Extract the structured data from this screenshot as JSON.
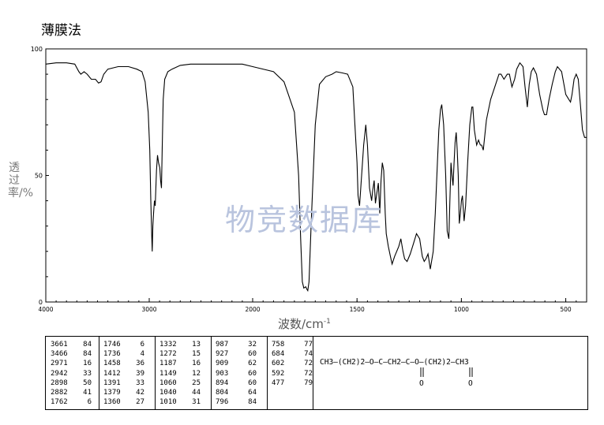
{
  "header": {
    "method": "薄膜法"
  },
  "watermark": "物竞数据库",
  "chart_data": {
    "type": "line",
    "xlabel": "波数/cm",
    "xlabel_sup": "-1",
    "ylabel": "透过率/%",
    "xlim": [
      4000,
      400
    ],
    "ylim": [
      0,
      100
    ],
    "x_ticks": [
      "4000",
      "3000",
      "2000",
      "1500",
      "1000",
      "500"
    ],
    "y_ticks": [
      "100",
      "50",
      "0"
    ],
    "series": [
      {
        "points": [
          [
            4000,
            94
          ],
          [
            3900,
            94.5
          ],
          [
            3800,
            94.5
          ],
          [
            3720,
            94
          ],
          [
            3680,
            91
          ],
          [
            3661,
            90
          ],
          [
            3630,
            91
          ],
          [
            3600,
            90
          ],
          [
            3560,
            88
          ],
          [
            3520,
            88
          ],
          [
            3490,
            86.5
          ],
          [
            3466,
            87
          ],
          [
            3440,
            90
          ],
          [
            3400,
            92
          ],
          [
            3300,
            93
          ],
          [
            3200,
            93
          ],
          [
            3120,
            92
          ],
          [
            3070,
            91
          ],
          [
            3040,
            87
          ],
          [
            3010,
            75
          ],
          [
            2995,
            60
          ],
          [
            2985,
            40
          ],
          [
            2975,
            25
          ],
          [
            2971,
            20
          ],
          [
            2965,
            30
          ],
          [
            2958,
            35
          ],
          [
            2950,
            40
          ],
          [
            2942,
            38
          ],
          [
            2930,
            52
          ],
          [
            2920,
            58
          ],
          [
            2910,
            55
          ],
          [
            2898,
            53
          ],
          [
            2890,
            48
          ],
          [
            2882,
            45
          ],
          [
            2875,
            60
          ],
          [
            2865,
            80
          ],
          [
            2850,
            88
          ],
          [
            2820,
            91
          ],
          [
            2780,
            92
          ],
          [
            2700,
            93.5
          ],
          [
            2600,
            94
          ],
          [
            2400,
            94
          ],
          [
            2200,
            94
          ],
          [
            2100,
            94
          ],
          [
            2000,
            93
          ],
          [
            1900,
            91
          ],
          [
            1850,
            87
          ],
          [
            1800,
            75
          ],
          [
            1780,
            50
          ],
          [
            1770,
            25
          ],
          [
            1762,
            8
          ],
          [
            1755,
            5.5
          ],
          [
            1746,
            6
          ],
          [
            1740,
            5
          ],
          [
            1736,
            4.5
          ],
          [
            1730,
            8
          ],
          [
            1720,
            30
          ],
          [
            1700,
            70
          ],
          [
            1680,
            86
          ],
          [
            1650,
            89
          ],
          [
            1620,
            90
          ],
          [
            1600,
            91
          ],
          [
            1570,
            90.5
          ],
          [
            1545,
            90
          ],
          [
            1520,
            85
          ],
          [
            1510,
            70
          ],
          [
            1500,
            55
          ],
          [
            1495,
            42
          ],
          [
            1488,
            38
          ],
          [
            1478,
            50
          ],
          [
            1468,
            62
          ],
          [
            1458,
            70
          ],
          [
            1450,
            62
          ],
          [
            1440,
            45
          ],
          [
            1430,
            40
          ],
          [
            1425,
            44
          ],
          [
            1418,
            48
          ],
          [
            1412,
            39
          ],
          [
            1405,
            43
          ],
          [
            1398,
            47
          ],
          [
            1391,
            35
          ],
          [
            1385,
            48
          ],
          [
            1379,
            55
          ],
          [
            1372,
            52
          ],
          [
            1365,
            35
          ],
          [
            1360,
            27
          ],
          [
            1350,
            22
          ],
          [
            1340,
            18
          ],
          [
            1332,
            15
          ],
          [
            1320,
            18
          ],
          [
            1300,
            22
          ],
          [
            1290,
            25
          ],
          [
            1280,
            20
          ],
          [
            1272,
            17
          ],
          [
            1260,
            16
          ],
          [
            1245,
            19
          ],
          [
            1230,
            23
          ],
          [
            1215,
            27
          ],
          [
            1200,
            25
          ],
          [
            1187,
            18
          ],
          [
            1178,
            16
          ],
          [
            1170,
            17
          ],
          [
            1160,
            19
          ],
          [
            1149,
            13
          ],
          [
            1135,
            20
          ],
          [
            1125,
            35
          ],
          [
            1115,
            55
          ],
          [
            1108,
            68
          ],
          [
            1100,
            76
          ],
          [
            1094,
            78
          ],
          [
            1085,
            70
          ],
          [
            1075,
            50
          ],
          [
            1068,
            28
          ],
          [
            1060,
            25
          ],
          [
            1055,
            40
          ],
          [
            1050,
            55
          ],
          [
            1045,
            50
          ],
          [
            1040,
            46
          ],
          [
            1035,
            55
          ],
          [
            1030,
            63
          ],
          [
            1025,
            67
          ],
          [
            1020,
            60
          ],
          [
            1015,
            50
          ],
          [
            1010,
            31
          ],
          [
            1005,
            35
          ],
          [
            1000,
            40
          ],
          [
            995,
            42
          ],
          [
            987,
            32
          ],
          [
            980,
            38
          ],
          [
            970,
            55
          ],
          [
            960,
            70
          ],
          [
            950,
            77
          ],
          [
            945,
            77
          ],
          [
            938,
            68
          ],
          [
            927,
            62
          ],
          [
            918,
            64
          ],
          [
            909,
            62
          ],
          [
            903,
            62
          ],
          [
            895,
            60
          ],
          [
            880,
            72
          ],
          [
            860,
            80
          ],
          [
            840,
            85
          ],
          [
            820,
            90
          ],
          [
            810,
            90
          ],
          [
            796,
            88
          ],
          [
            780,
            90
          ],
          [
            770,
            90
          ],
          [
            758,
            85
          ],
          [
            745,
            88
          ],
          [
            735,
            92
          ],
          [
            720,
            94.5
          ],
          [
            705,
            93
          ],
          [
            695,
            85
          ],
          [
            684,
            77
          ],
          [
            675,
            86
          ],
          [
            665,
            91
          ],
          [
            655,
            92.5
          ],
          [
            640,
            90
          ],
          [
            625,
            82
          ],
          [
            610,
            76
          ],
          [
            602,
            74
          ],
          [
            595,
            74
          ],
          [
            592,
            74
          ],
          [
            580,
            80
          ],
          [
            565,
            86
          ],
          [
            550,
            91
          ],
          [
            540,
            93
          ],
          [
            520,
            91
          ],
          [
            500,
            82
          ],
          [
            485,
            80
          ],
          [
            477,
            79
          ],
          [
            470,
            82
          ],
          [
            460,
            88
          ],
          [
            450,
            90
          ],
          [
            440,
            88
          ],
          [
            430,
            78
          ],
          [
            420,
            68
          ],
          [
            410,
            65
          ],
          [
            400,
            65
          ]
        ]
      }
    ],
    "peak_table": [
      [
        [
          "3661",
          "84"
        ],
        [
          "3466",
          "84"
        ],
        [
          "2971",
          "16"
        ],
        [
          "2942",
          "33"
        ],
        [
          "2898",
          "50"
        ],
        [
          "2882",
          "41"
        ],
        [
          "1762",
          "6"
        ]
      ],
      [
        [
          "1746",
          "6"
        ],
        [
          "1736",
          "4"
        ],
        [
          "1458",
          "36"
        ],
        [
          "1412",
          "39"
        ],
        [
          "1391",
          "33"
        ],
        [
          "1379",
          "42"
        ],
        [
          "1360",
          "27"
        ]
      ],
      [
        [
          "1332",
          "13"
        ],
        [
          "1272",
          "15"
        ],
        [
          "1187",
          "16"
        ],
        [
          "1149",
          "12"
        ],
        [
          "1060",
          "25"
        ],
        [
          "1040",
          "44"
        ],
        [
          "1010",
          "31"
        ]
      ],
      [
        [
          "987",
          "32"
        ],
        [
          "927",
          "60"
        ],
        [
          "909",
          "62"
        ],
        [
          "903",
          "60"
        ],
        [
          "894",
          "60"
        ],
        [
          "804",
          "64"
        ],
        [
          "796",
          "84"
        ]
      ],
      [
        [
          "758",
          "77"
        ],
        [
          "684",
          "74"
        ],
        [
          "602",
          "72"
        ],
        [
          "592",
          "72"
        ],
        [
          "477",
          "79"
        ]
      ]
    ]
  },
  "structure": {
    "main": "CH3—(CH2)2—O—C—CH2—C—O—(CH2)2—CH3",
    "carbonyl_o1": "O",
    "carbonyl_o2": "O"
  }
}
